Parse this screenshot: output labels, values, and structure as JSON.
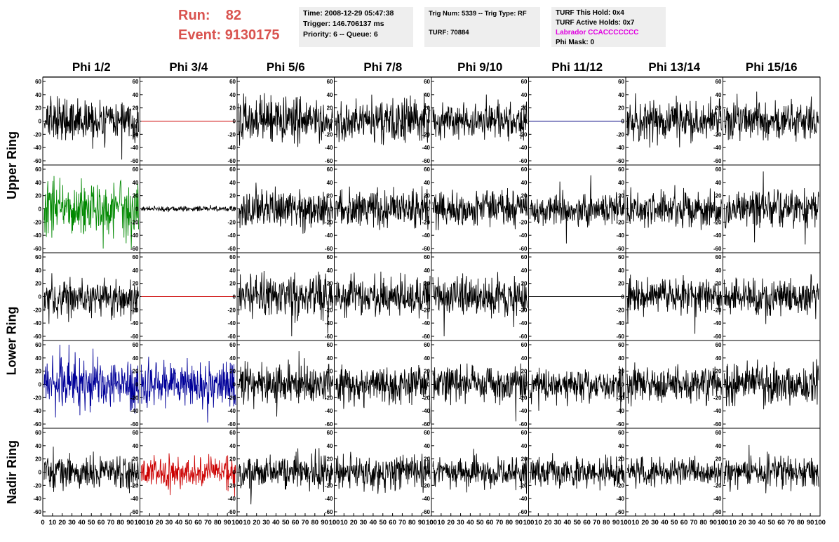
{
  "header": {
    "run_label": "Run:",
    "run_value": "82",
    "event_label": "Event:",
    "event_value": "9130175",
    "time": "Time: 2008-12-29 05:47:38",
    "trigger": "Trigger: 146.706137 ms",
    "priority": "Priority: 6 -- Queue: 6",
    "trig_num": "Trig Num: 5339 -- Trig Type: RF",
    "turf": "TURF: 70884",
    "turf_this_hold": "TURF This Hold: 0x4",
    "turf_active_holds": "TURF Active Holds: 0x7",
    "labrador": "Labrador CCACCCCCCC",
    "phi_mask": "Phi Mask: 0",
    "label_color": "#d9534f",
    "labrador_color": "#e000e0"
  },
  "columns": [
    "Phi 1/2",
    "Phi 3/4",
    "Phi 5/6",
    "Phi 7/8",
    "Phi 9/10",
    "Phi 11/12",
    "Phi 13/14",
    "Phi 15/16"
  ],
  "rows": [
    {
      "label": "Upper Ring",
      "subrows": 2
    },
    {
      "label": "Lower Ring",
      "subrows": 2
    },
    {
      "label": "Nadir Ring",
      "subrows": 1
    }
  ],
  "chart_data": {
    "type": "line",
    "ylim": [
      -60,
      60
    ],
    "xlim": [
      0,
      100
    ],
    "yticks": [
      "60",
      "40",
      "20",
      "0",
      "-20",
      "-40",
      "-60"
    ],
    "xticks": [
      "0",
      "10",
      "20",
      "30",
      "40",
      "50",
      "60",
      "70",
      "80",
      "90",
      "100"
    ],
    "panels": [
      {
        "row": 0,
        "col": 0,
        "color": "#000000",
        "kind": "noise",
        "amp": 15
      },
      {
        "row": 0,
        "col": 1,
        "color": "#cc0000",
        "kind": "flat",
        "amp": 0
      },
      {
        "row": 0,
        "col": 2,
        "color": "#000000",
        "kind": "noise",
        "amp": 16
      },
      {
        "row": 0,
        "col": 3,
        "color": "#000000",
        "kind": "noise",
        "amp": 16
      },
      {
        "row": 0,
        "col": 4,
        "color": "#000000",
        "kind": "noise",
        "amp": 14
      },
      {
        "row": 0,
        "col": 5,
        "color": "#000080",
        "kind": "flat",
        "amp": 0
      },
      {
        "row": 0,
        "col": 6,
        "color": "#000000",
        "kind": "noise",
        "amp": 15
      },
      {
        "row": 0,
        "col": 7,
        "color": "#000000",
        "kind": "noise",
        "amp": 15
      },
      {
        "row": 1,
        "col": 0,
        "color": "#008800",
        "kind": "noise",
        "amp": 20
      },
      {
        "row": 1,
        "col": 1,
        "color": "#000000",
        "kind": "noise",
        "amp": 2
      },
      {
        "row": 1,
        "col": 2,
        "color": "#000000",
        "kind": "noise",
        "amp": 14
      },
      {
        "row": 1,
        "col": 3,
        "color": "#000000",
        "kind": "noise",
        "amp": 15
      },
      {
        "row": 1,
        "col": 4,
        "color": "#000000",
        "kind": "noise",
        "amp": 13
      },
      {
        "row": 1,
        "col": 5,
        "color": "#000000",
        "kind": "noise",
        "amp": 12
      },
      {
        "row": 1,
        "col": 6,
        "color": "#000000",
        "kind": "noise",
        "amp": 13
      },
      {
        "row": 1,
        "col": 7,
        "color": "#000000",
        "kind": "noise",
        "amp": 14
      },
      {
        "row": 2,
        "col": 0,
        "color": "#000000",
        "kind": "noise",
        "amp": 14
      },
      {
        "row": 2,
        "col": 1,
        "color": "#cc0000",
        "kind": "flat",
        "amp": 0
      },
      {
        "row": 2,
        "col": 2,
        "color": "#000000",
        "kind": "noise",
        "amp": 16
      },
      {
        "row": 2,
        "col": 3,
        "color": "#000000",
        "kind": "noise",
        "amp": 15
      },
      {
        "row": 2,
        "col": 4,
        "color": "#000000",
        "kind": "noise",
        "amp": 14
      },
      {
        "row": 2,
        "col": 5,
        "color": "#000000",
        "kind": "flat",
        "amp": 0
      },
      {
        "row": 2,
        "col": 6,
        "color": "#000000",
        "kind": "noise",
        "amp": 13
      },
      {
        "row": 2,
        "col": 7,
        "color": "#000000",
        "kind": "noise",
        "amp": 14
      },
      {
        "row": 3,
        "col": 0,
        "color": "#000099",
        "kind": "noise",
        "amp": 18
      },
      {
        "row": 3,
        "col": 1,
        "color": "#000099",
        "kind": "noise",
        "amp": 18
      },
      {
        "row": 3,
        "col": 2,
        "color": "#000000",
        "kind": "noise",
        "amp": 14
      },
      {
        "row": 3,
        "col": 3,
        "color": "#000000",
        "kind": "noise",
        "amp": 14
      },
      {
        "row": 3,
        "col": 4,
        "color": "#000000",
        "kind": "noise",
        "amp": 13
      },
      {
        "row": 3,
        "col": 5,
        "color": "#000000",
        "kind": "noise",
        "amp": 12
      },
      {
        "row": 3,
        "col": 6,
        "color": "#000000",
        "kind": "noise",
        "amp": 13
      },
      {
        "row": 3,
        "col": 7,
        "color": "#000000",
        "kind": "noise",
        "amp": 15
      },
      {
        "row": 4,
        "col": 0,
        "color": "#000000",
        "kind": "noise",
        "amp": 12
      },
      {
        "row": 4,
        "col": 1,
        "color": "#cc0000",
        "kind": "noise",
        "amp": 11
      },
      {
        "row": 4,
        "col": 2,
        "color": "#000000",
        "kind": "noise",
        "amp": 13
      },
      {
        "row": 4,
        "col": 3,
        "color": "#000000",
        "kind": "noise",
        "amp": 13
      },
      {
        "row": 4,
        "col": 4,
        "color": "#000000",
        "kind": "noise",
        "amp": 12
      },
      {
        "row": 4,
        "col": 5,
        "color": "#000000",
        "kind": "noise",
        "amp": 12
      },
      {
        "row": 4,
        "col": 6,
        "color": "#000000",
        "kind": "noise",
        "amp": 11
      },
      {
        "row": 4,
        "col": 7,
        "color": "#000000",
        "kind": "noise",
        "amp": 11
      }
    ]
  }
}
